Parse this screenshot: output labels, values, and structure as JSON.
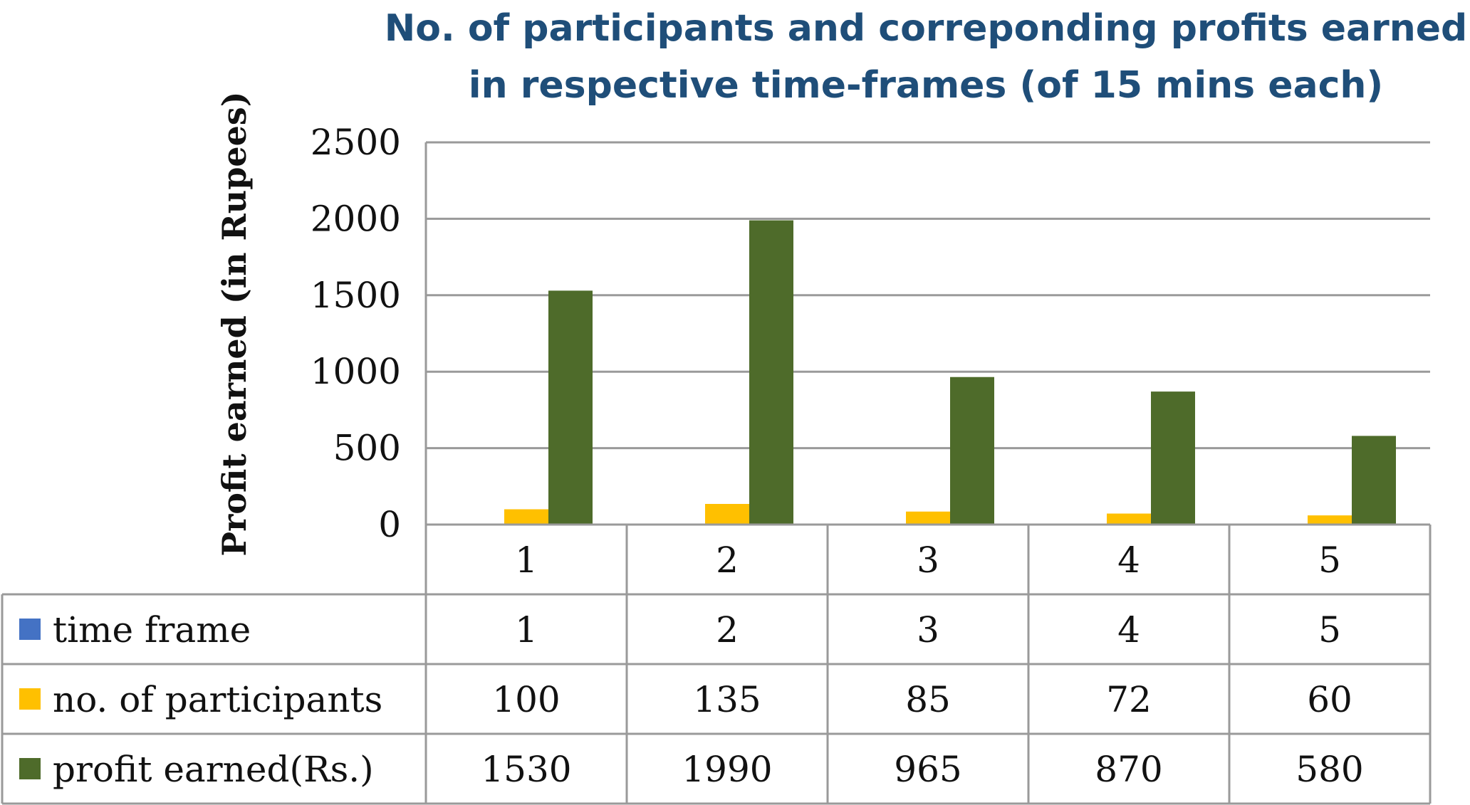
{
  "chart_data": {
    "type": "bar",
    "title_lines": [
      "No. of participants and correponding profits earned",
      "in respective time-frames (of 15 mins each)"
    ],
    "xlabel": "",
    "ylabel": "Profit earned (in Rupees)",
    "ylim": [
      0,
      2500
    ],
    "yticks": [
      0,
      500,
      1000,
      1500,
      2000,
      2500
    ],
    "categories": [
      "1",
      "2",
      "3",
      "4",
      "5"
    ],
    "grid": true,
    "legend": "data-table",
    "series": [
      {
        "name": "time frame",
        "color": "#4472c4",
        "values": [
          1,
          2,
          3,
          4,
          5
        ]
      },
      {
        "name": "no. of participants",
        "color": "#ffc000",
        "values": [
          100,
          135,
          85,
          72,
          60
        ]
      },
      {
        "name": "profit earned(Rs.)",
        "color": "#4e6b2a",
        "values": [
          1530,
          1990,
          965,
          870,
          580
        ]
      }
    ]
  }
}
